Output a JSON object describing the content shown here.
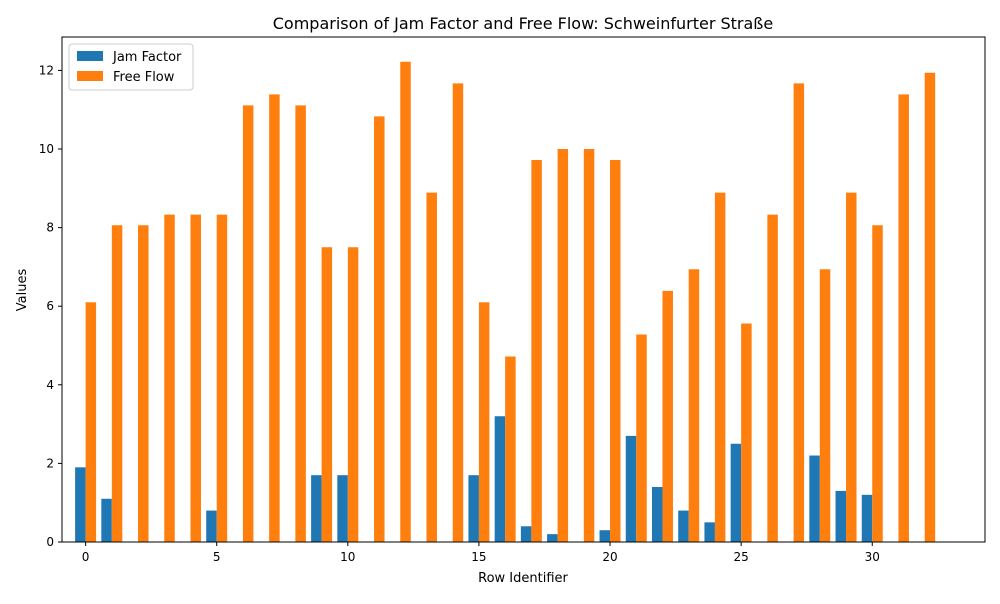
{
  "chart_data": {
    "type": "bar",
    "title": "Comparison of Jam Factor and Free Flow: Schweinfurter Straße",
    "xlabel": "Row Identifier",
    "ylabel": "Values",
    "x": [
      0,
      1,
      2,
      3,
      4,
      5,
      6,
      7,
      8,
      9,
      10,
      11,
      12,
      13,
      14,
      15,
      16,
      17,
      18,
      19,
      20,
      21,
      22,
      23,
      24,
      25,
      26,
      27,
      28,
      29,
      30,
      31,
      32
    ],
    "xlim": [
      -0.9,
      34.3
    ],
    "ylim": [
      0,
      12.85
    ],
    "xticks": [
      0,
      5,
      10,
      15,
      20,
      25,
      30
    ],
    "yticks": [
      0,
      2,
      4,
      6,
      8,
      10,
      12
    ],
    "grid": false,
    "legend_position": "upper-left",
    "series": [
      {
        "name": "Jam Factor",
        "color": "#1f77b4",
        "values": [
          1.9,
          1.1,
          0,
          0,
          0,
          0.8,
          0,
          0,
          0,
          1.7,
          1.7,
          0,
          0,
          0,
          0,
          1.7,
          3.2,
          0.4,
          0.2,
          0,
          0.3,
          2.7,
          1.4,
          0.8,
          0.5,
          2.5,
          0,
          0,
          2.2,
          1.3,
          1.2,
          0,
          0
        ]
      },
      {
        "name": "Free Flow",
        "color": "#ff7f0e",
        "values": [
          6.1,
          8.06,
          8.06,
          8.33,
          8.33,
          8.33,
          11.11,
          11.39,
          11.11,
          7.5,
          7.5,
          10.83,
          12.22,
          8.89,
          11.67,
          6.1,
          4.72,
          9.72,
          10.0,
          10.0,
          9.72,
          5.28,
          6.39,
          6.94,
          8.89,
          5.56,
          8.33,
          11.67,
          6.94,
          8.89,
          8.06,
          11.39,
          11.94
        ]
      }
    ]
  }
}
